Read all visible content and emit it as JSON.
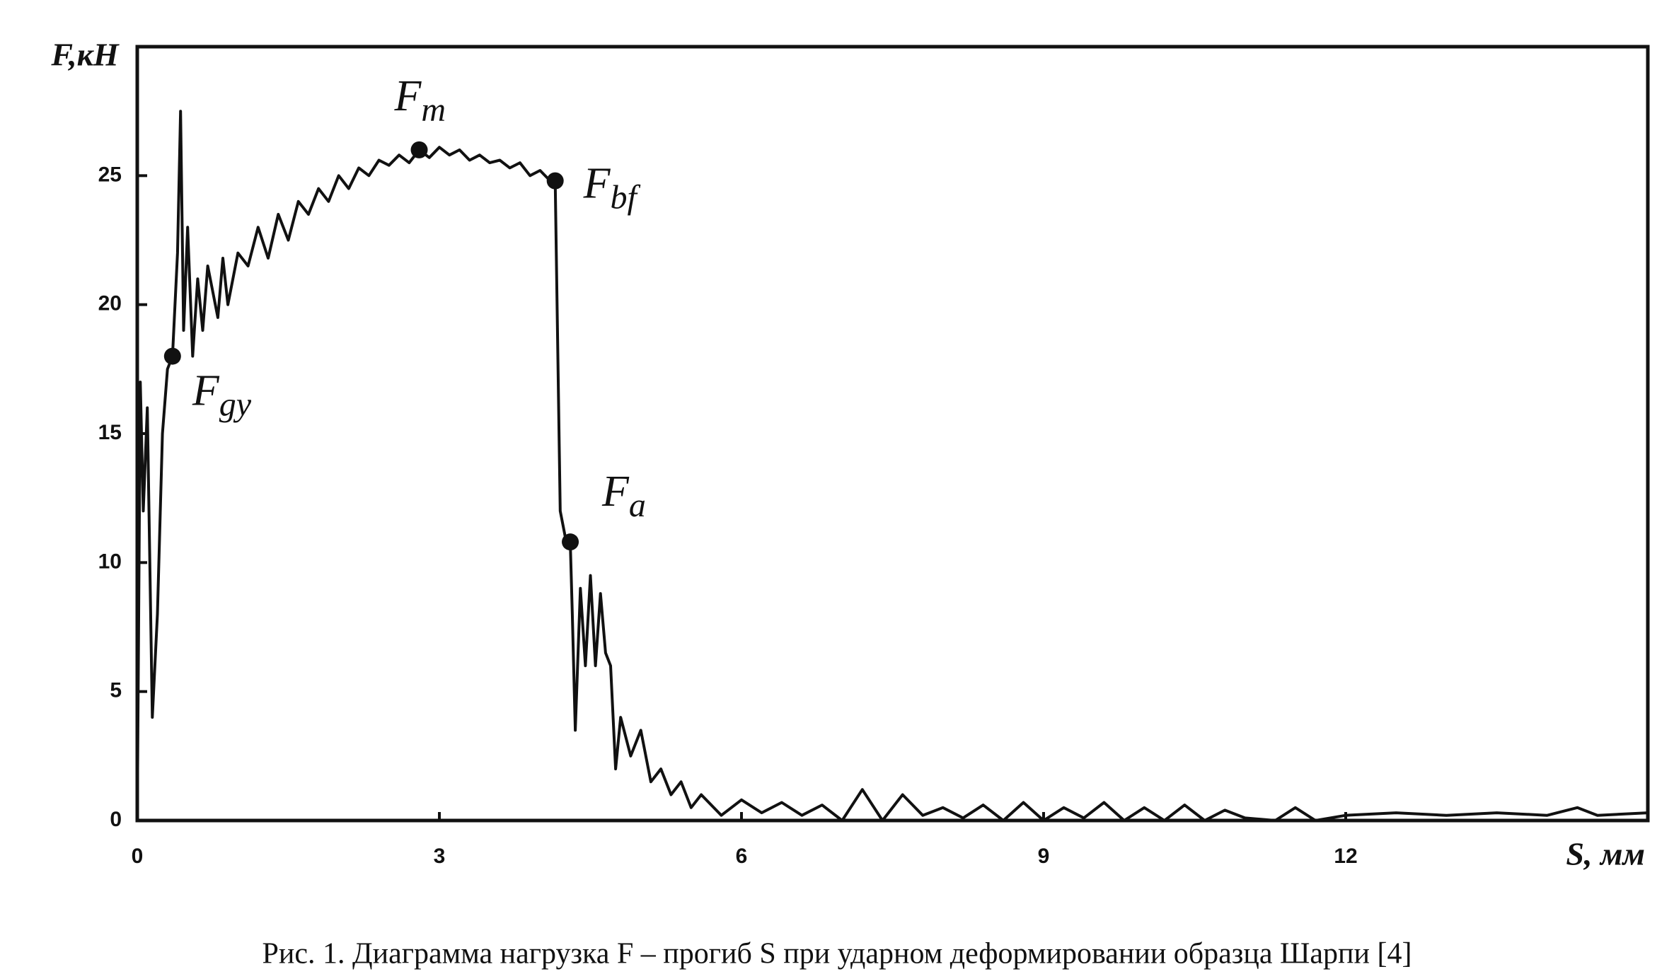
{
  "chart_data": {
    "type": "line",
    "y_label": "F,кН",
    "x_label": "S, мм",
    "caption": "Рис. 1. Диаграмма нагрузка F – прогиб S при ударном деформировании образца Шарпи [4]",
    "xlim": [
      0,
      15
    ],
    "ylim": [
      0,
      30
    ],
    "xticks": [
      0,
      3,
      6,
      9,
      12
    ],
    "yticks": [
      0,
      5,
      10,
      15,
      20,
      25
    ],
    "x": [
      0,
      0.03,
      0.06,
      0.1,
      0.15,
      0.2,
      0.25,
      0.3,
      0.35,
      0.4,
      0.43,
      0.46,
      0.5,
      0.55,
      0.6,
      0.65,
      0.7,
      0.8,
      0.85,
      0.9,
      1.0,
      1.1,
      1.2,
      1.3,
      1.4,
      1.5,
      1.6,
      1.7,
      1.8,
      1.9,
      2.0,
      2.1,
      2.2,
      2.3,
      2.4,
      2.5,
      2.6,
      2.7,
      2.8,
      2.9,
      3.0,
      3.1,
      3.2,
      3.3,
      3.4,
      3.5,
      3.6,
      3.7,
      3.8,
      3.9,
      4.0,
      4.1,
      4.15,
      4.2,
      4.25,
      4.3,
      4.32,
      4.35,
      4.4,
      4.45,
      4.5,
      4.55,
      4.6,
      4.65,
      4.7,
      4.75,
      4.8,
      4.9,
      5.0,
      5.1,
      5.2,
      5.3,
      5.4,
      5.5,
      5.6,
      5.8,
      6.0,
      6.2,
      6.4,
      6.6,
      6.8,
      7.0,
      7.2,
      7.4,
      7.6,
      7.8,
      8.0,
      8.2,
      8.4,
      8.6,
      8.8,
      9.0,
      9.2,
      9.4,
      9.6,
      9.8,
      10.0,
      10.2,
      10.4,
      10.6,
      10.8,
      11.0,
      11.3,
      11.5,
      11.7,
      12.0,
      12.5,
      13.0,
      13.5,
      14.0,
      14.3,
      14.5,
      15.0
    ],
    "series": [
      {
        "color": "#111111",
        "values": [
          0,
          17,
          12,
          16,
          4,
          8,
          15,
          17.5,
          18,
          22,
          27.5,
          19,
          23,
          18,
          21,
          19,
          21.5,
          19.5,
          21.8,
          20,
          22,
          21.5,
          23,
          21.8,
          23.5,
          22.5,
          24,
          23.5,
          24.5,
          24,
          25,
          24.5,
          25.3,
          25,
          25.6,
          25.4,
          25.8,
          25.5,
          26,
          25.7,
          26.1,
          25.8,
          26,
          25.6,
          25.8,
          25.5,
          25.6,
          25.3,
          25.5,
          25,
          25.2,
          24.8,
          24.8,
          12,
          11,
          10.8,
          8,
          3.5,
          9,
          6,
          9.5,
          6,
          8.8,
          6.5,
          6,
          2,
          4,
          2.5,
          3.5,
          1.5,
          2,
          1,
          1.5,
          0.5,
          1,
          0.2,
          0.8,
          0.3,
          0.7,
          0.2,
          0.6,
          0,
          1.2,
          0,
          1,
          0.2,
          0.5,
          0.1,
          0.6,
          0,
          0.7,
          0,
          0.5,
          0.1,
          0.7,
          0,
          0.5,
          0,
          0.6,
          0,
          0.4,
          0.1,
          0,
          0.5,
          0,
          0.2,
          0.3,
          0.2,
          0.3,
          0.2,
          0.5,
          0.2,
          0.3
        ]
      }
    ],
    "annotations": [
      {
        "text": "F",
        "sub": "gy",
        "x": 0.35,
        "y": 18
      },
      {
        "text": "F",
        "sub": "m",
        "x": 2.8,
        "y": 26
      },
      {
        "text": "F",
        "sub": "bf",
        "x": 4.15,
        "y": 24.8
      },
      {
        "text": "F",
        "sub": "a",
        "x": 4.3,
        "y": 10.8
      }
    ]
  }
}
